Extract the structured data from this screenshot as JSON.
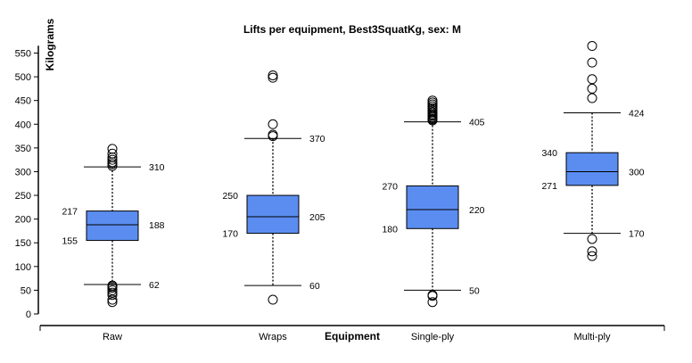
{
  "chart_data": {
    "type": "boxplot",
    "title": "Lifts per equipment, Best3SquatKg, sex: M",
    "xlabel": "Equipment",
    "ylabel": "Kilograms",
    "ylim": [
      0,
      560
    ],
    "yticks": [
      0,
      50,
      100,
      150,
      200,
      250,
      300,
      350,
      400,
      450,
      500,
      550
    ],
    "grid": false,
    "categories": [
      "Raw",
      "Wraps",
      "Single-ply",
      "Multi-ply"
    ],
    "boxes": [
      {
        "category": "Raw",
        "whisker_low": 62,
        "q1": 155,
        "median": 188,
        "q3": 217,
        "whisker_high": 310,
        "outliers": [
          25,
          30,
          40,
          45,
          50,
          55,
          58,
          60,
          312,
          316,
          320,
          325,
          330,
          338,
          348
        ]
      },
      {
        "category": "Wraps",
        "whisker_low": 60,
        "q1": 170,
        "median": 205,
        "q3": 250,
        "whisker_high": 370,
        "outliers": [
          30,
          375,
          378,
          400,
          498,
          503
        ]
      },
      {
        "category": "Single-ply",
        "whisker_low": 50,
        "q1": 180,
        "median": 220,
        "q3": 270,
        "whisker_high": 405,
        "outliers": [
          25,
          38,
          40,
          408,
          410,
          412,
          415,
          418,
          420,
          423,
          426,
          430,
          434,
          438,
          442,
          446,
          450
        ]
      },
      {
        "category": "Multi-ply",
        "whisker_low": 170,
        "q1": 271,
        "median": 300,
        "q3": 340,
        "whisker_high": 424,
        "outliers": [
          122,
          132,
          158,
          455,
          475,
          495,
          530,
          565
        ]
      }
    ]
  }
}
